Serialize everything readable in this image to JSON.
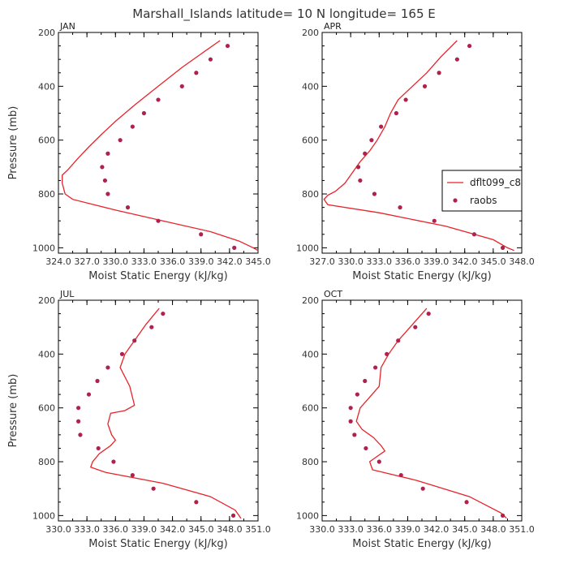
{
  "title": "Marshall_Islands  latitude= 10 N longitude= 165 E",
  "chart_data": [
    {
      "type": "line",
      "panel": "JAN",
      "xlabel": "Moist Static Energy (kJ/kg)",
      "ylabel": "Pressure (mb)",
      "xlim": [
        324.0,
        345.0
      ],
      "ylim": [
        1020,
        200
      ],
      "xticks": [
        324.0,
        327.0,
        330.0,
        333.0,
        336.0,
        339.0,
        342.0,
        345.0
      ],
      "xticklabels": [
        "324.0",
        "327.0",
        "330.0",
        "333.0",
        "336.0",
        "339.0",
        "342.0",
        "345.0"
      ],
      "yticks": [
        200,
        400,
        600,
        800,
        1000
      ],
      "series": [
        {
          "name": "dflt099_c8",
          "style": "line",
          "color": "#e8232a",
          "x": [
            341.0,
            339.0,
            337.0,
            334.5,
            332.0,
            330.0,
            328.5,
            327.2,
            326.0,
            325.0,
            324.4,
            324.4,
            324.7,
            325.5,
            330.0,
            335.0,
            340.0,
            343.0,
            344.5,
            345.0
          ],
          "y": [
            230,
            280,
            330,
            400,
            470,
            530,
            580,
            625,
            670,
            710,
            730,
            760,
            800,
            820,
            860,
            900,
            940,
            975,
            1000,
            1010
          ]
        },
        {
          "name": "raobs",
          "style": "points",
          "color": "#b0224d",
          "x": [
            341.8,
            340.0,
            338.5,
            337.0,
            334.5,
            333.0,
            331.8,
            330.5,
            329.2,
            328.6,
            328.9,
            329.2,
            331.3,
            334.5,
            339.0,
            342.5
          ],
          "y": [
            250,
            300,
            350,
            400,
            450,
            500,
            550,
            600,
            650,
            700,
            750,
            800,
            850,
            900,
            950,
            1000
          ]
        }
      ]
    },
    {
      "type": "line",
      "panel": "APR",
      "xlabel": "Moist Static Energy (kJ/kg)",
      "ylabel": "Pressure (mb)",
      "xlim": [
        327.0,
        348.0
      ],
      "ylim": [
        1020,
        200
      ],
      "xticks": [
        327.0,
        330.0,
        333.0,
        336.0,
        339.0,
        342.0,
        345.0,
        348.0
      ],
      "xticklabels": [
        "327.0",
        "330.0",
        "333.0",
        "336.0",
        "339.0",
        "342.0",
        "345.0",
        "348.0"
      ],
      "yticks": [
        200,
        400,
        600,
        800,
        1000
      ],
      "series": [
        {
          "name": "dflt099_c8",
          "style": "line",
          "color": "#e8232a",
          "x": [
            341.2,
            339.5,
            338.0,
            336.5,
            335.0,
            334.2,
            333.6,
            332.8,
            332.0,
            331.0,
            330.2,
            329.4,
            328.4,
            327.6,
            327.2,
            327.6,
            333.0,
            340.0,
            345.0,
            346.5,
            347.2
          ],
          "y": [
            230,
            290,
            350,
            400,
            450,
            500,
            550,
            600,
            640,
            680,
            720,
            760,
            790,
            805,
            820,
            840,
            870,
            920,
            970,
            1000,
            1010
          ]
        },
        {
          "name": "raobs",
          "style": "points",
          "color": "#b0224d",
          "x": [
            342.5,
            341.2,
            339.3,
            337.8,
            335.8,
            334.8,
            333.2,
            332.2,
            331.5,
            330.8,
            331.0,
            332.5,
            335.2,
            338.8,
            343.0,
            346.0
          ],
          "y": [
            250,
            300,
            350,
            400,
            450,
            500,
            550,
            600,
            650,
            700,
            750,
            800,
            850,
            900,
            950,
            1000
          ]
        }
      ]
    },
    {
      "type": "line",
      "panel": "JUL",
      "xlabel": "Moist Static Energy (kJ/kg)",
      "ylabel": "Pressure (mb)",
      "xlim": [
        330.0,
        351.0
      ],
      "ylim": [
        1020,
        200
      ],
      "xticks": [
        330.0,
        333.0,
        336.0,
        339.0,
        342.0,
        345.0,
        348.0,
        351.0
      ],
      "xticklabels": [
        "330.0",
        "333.0",
        "336.0",
        "339.0",
        "342.0",
        "345.0",
        "348.0",
        "351.0"
      ],
      "yticks": [
        200,
        400,
        600,
        800,
        1000
      ],
      "series": [
        {
          "name": "dflt099_c8",
          "style": "line",
          "color": "#e8232a",
          "x": [
            340.6,
            339.2,
            338.0,
            337.0,
            336.5,
            337.5,
            338.0,
            337.0,
            335.5,
            335.2,
            335.6,
            336.0,
            335.5,
            334.3,
            333.6,
            333.4,
            335.0,
            341.0,
            346.0,
            348.6,
            349.2
          ],
          "y": [
            230,
            290,
            350,
            400,
            450,
            520,
            590,
            610,
            620,
            660,
            700,
            720,
            740,
            770,
            800,
            820,
            840,
            880,
            930,
            980,
            1010
          ]
        },
        {
          "name": "raobs",
          "style": "points",
          "color": "#b0224d",
          "x": [
            341.0,
            339.8,
            338.0,
            336.7,
            335.2,
            334.1,
            333.2,
            332.1,
            332.1,
            332.3,
            334.2,
            335.8,
            337.8,
            340.0,
            344.5,
            348.4
          ],
          "y": [
            250,
            300,
            350,
            400,
            450,
            500,
            550,
            600,
            650,
            700,
            750,
            800,
            850,
            900,
            950,
            1000
          ]
        }
      ]
    },
    {
      "type": "line",
      "panel": "OCT",
      "xlabel": "Moist Static Energy (kJ/kg)",
      "ylabel": "Pressure (mb)",
      "xlim": [
        330.0,
        351.0
      ],
      "ylim": [
        1020,
        200
      ],
      "xticks": [
        330.0,
        333.0,
        336.0,
        339.0,
        342.0,
        345.0,
        348.0,
        351.0
      ],
      "xticklabels": [
        "330.0",
        "333.0",
        "336.0",
        "339.0",
        "342.0",
        "345.0",
        "348.0",
        "351.0"
      ],
      "yticks": [
        200,
        400,
        600,
        800,
        1000
      ],
      "series": [
        {
          "name": "dflt099_c8",
          "style": "line",
          "color": "#e8232a",
          "x": [
            341.0,
            339.5,
            338.0,
            337.0,
            336.2,
            336.0,
            335.0,
            334.0,
            333.6,
            334.2,
            335.4,
            336.2,
            336.6,
            335.8,
            335.0,
            335.3,
            340.0,
            345.5,
            348.8,
            349.4
          ],
          "y": [
            230,
            290,
            350,
            400,
            450,
            520,
            560,
            600,
            650,
            680,
            710,
            740,
            760,
            780,
            800,
            830,
            870,
            930,
            990,
            1010
          ]
        },
        {
          "name": "raobs",
          "style": "points",
          "color": "#b0224d",
          "x": [
            341.2,
            339.8,
            338.0,
            336.8,
            335.6,
            334.5,
            333.7,
            333.0,
            333.0,
            333.4,
            334.6,
            336.0,
            338.3,
            340.6,
            345.2,
            349.0
          ],
          "y": [
            250,
            300,
            350,
            400,
            450,
            500,
            550,
            600,
            650,
            700,
            750,
            800,
            850,
            900,
            950,
            1000
          ]
        }
      ]
    }
  ],
  "legend": {
    "entries": [
      {
        "label": "dflt099_c8",
        "style": "line",
        "color": "#e8232a"
      },
      {
        "label": "raobs",
        "style": "point",
        "color": "#b0224d"
      }
    ],
    "panel": "APR",
    "placement": "right-middle"
  }
}
